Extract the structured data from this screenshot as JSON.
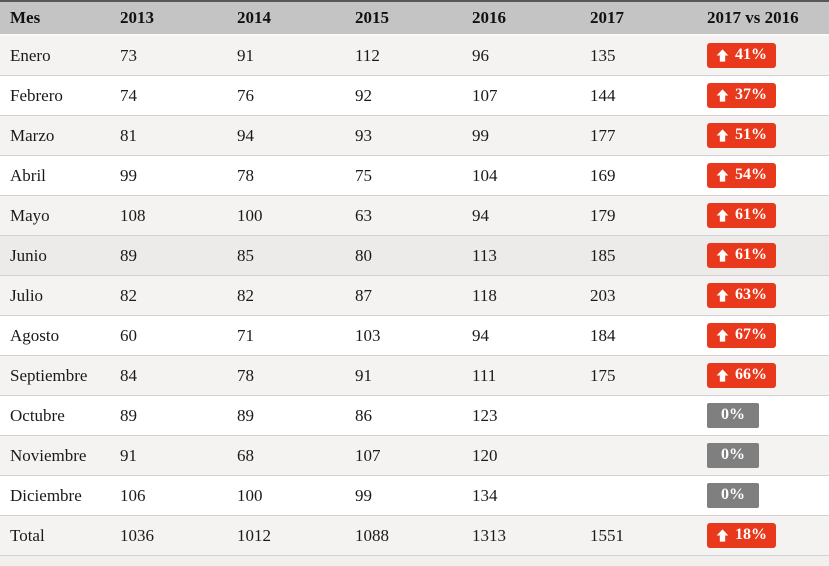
{
  "colors": {
    "header_bg": "#c4c4c4",
    "row_stripe": "#f4f3f2",
    "row_plain": "#ffffff",
    "row_highlight": "#ecebea",
    "badge_up_bg": "#e8391d",
    "badge_flat_bg": "#7f7f7f",
    "badge_text": "#ffffff"
  },
  "icons": {
    "up_arrow": "arrow-up-icon"
  },
  "chart_data": {
    "type": "table",
    "title": "",
    "columns": [
      "Mes",
      "2013",
      "2014",
      "2015",
      "2016",
      "2017",
      "2017 vs 2016"
    ],
    "rows": [
      {
        "mes": "Enero",
        "values": [
          "73",
          "91",
          "112",
          "96",
          "135"
        ],
        "change": {
          "direction": "up",
          "label": "41%"
        },
        "highlighted": false
      },
      {
        "mes": "Febrero",
        "values": [
          "74",
          "76",
          "92",
          "107",
          "144"
        ],
        "change": {
          "direction": "up",
          "label": "37%"
        },
        "highlighted": false
      },
      {
        "mes": "Marzo",
        "values": [
          "81",
          "94",
          "93",
          "99",
          "177"
        ],
        "change": {
          "direction": "up",
          "label": "51%"
        },
        "highlighted": false
      },
      {
        "mes": "Abril",
        "values": [
          "99",
          "78",
          "75",
          "104",
          "169"
        ],
        "change": {
          "direction": "up",
          "label": "54%"
        },
        "highlighted": false
      },
      {
        "mes": "Mayo",
        "values": [
          "108",
          "100",
          "63",
          "94",
          "179"
        ],
        "change": {
          "direction": "up",
          "label": "61%"
        },
        "highlighted": false
      },
      {
        "mes": "Junio",
        "values": [
          "89",
          "85",
          "80",
          "113",
          "185"
        ],
        "change": {
          "direction": "up",
          "label": "61%"
        },
        "highlighted": true
      },
      {
        "mes": "Julio",
        "values": [
          "82",
          "82",
          "87",
          "118",
          "203"
        ],
        "change": {
          "direction": "up",
          "label": "63%"
        },
        "highlighted": false
      },
      {
        "mes": "Agosto",
        "values": [
          "60",
          "71",
          "103",
          "94",
          "184"
        ],
        "change": {
          "direction": "up",
          "label": "67%"
        },
        "highlighted": false
      },
      {
        "mes": "Septiembre",
        "values": [
          "84",
          "78",
          "91",
          "111",
          "175"
        ],
        "change": {
          "direction": "up",
          "label": "66%"
        },
        "highlighted": false
      },
      {
        "mes": "Octubre",
        "values": [
          "89",
          "89",
          "86",
          "123",
          ""
        ],
        "change": {
          "direction": "none",
          "label": "0%"
        },
        "highlighted": false
      },
      {
        "mes": "Noviembre",
        "values": [
          "91",
          "68",
          "107",
          "120",
          ""
        ],
        "change": {
          "direction": "none",
          "label": "0%"
        },
        "highlighted": false
      },
      {
        "mes": "Diciembre",
        "values": [
          "106",
          "100",
          "99",
          "134",
          ""
        ],
        "change": {
          "direction": "none",
          "label": "0%"
        },
        "highlighted": false
      },
      {
        "mes": "Total",
        "values": [
          "1036",
          "1012",
          "1088",
          "1313",
          "1551"
        ],
        "change": {
          "direction": "up",
          "label": "18%"
        },
        "highlighted": false
      }
    ]
  }
}
